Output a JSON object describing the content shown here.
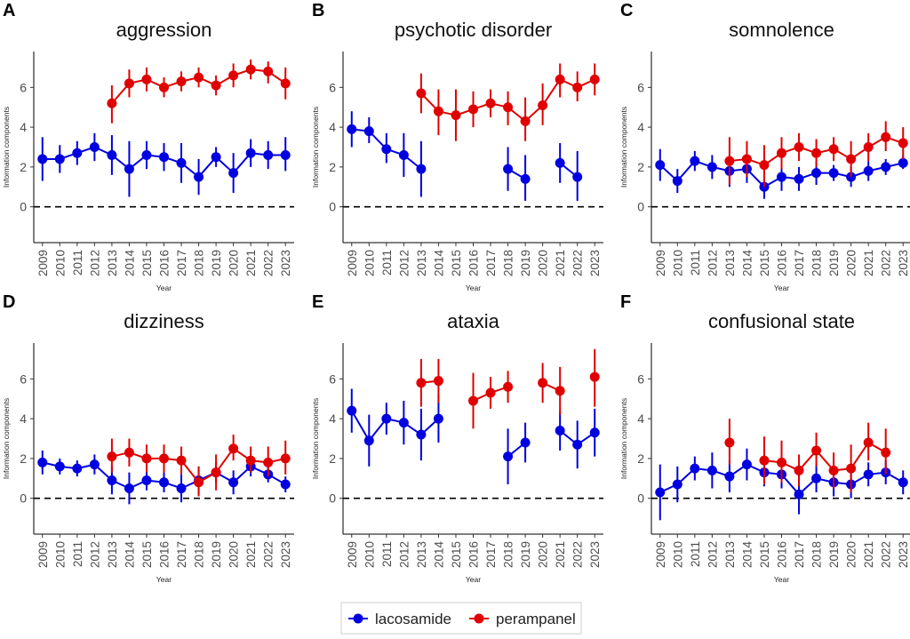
{
  "figure": {
    "legend": [
      {
        "label": "lacosamide",
        "color": "#0000E0"
      },
      {
        "label": "perampanel",
        "color": "#E00000"
      }
    ],
    "xlabel": "Year",
    "ylabel": "Information components",
    "yticks": [
      "0",
      "2",
      "4",
      "6"
    ],
    "years": [
      "2009",
      "2010",
      "2011",
      "2012",
      "2013",
      "2014",
      "2015",
      "2016",
      "2017",
      "2018",
      "2019",
      "2020",
      "2021",
      "2022",
      "2023"
    ]
  },
  "chart_data": [
    {
      "panel": "A",
      "title": "aggression",
      "type": "line",
      "ylim": [
        -1.8,
        7.8
      ],
      "series": [
        {
          "name": "lacosamide",
          "color": "#0000E0",
          "values": [
            2.4,
            2.4,
            2.7,
            3.0,
            2.6,
            1.9,
            2.6,
            2.5,
            2.2,
            1.5,
            2.5,
            1.7,
            2.7,
            2.6,
            2.6
          ],
          "lower": [
            1.3,
            1.7,
            2.1,
            2.3,
            1.6,
            0.5,
            1.9,
            1.8,
            1.2,
            0.6,
            2.0,
            0.7,
            2.0,
            1.9,
            1.8
          ],
          "upper": [
            3.5,
            3.1,
            3.3,
            3.7,
            3.6,
            3.3,
            3.3,
            3.2,
            3.2,
            2.4,
            3.0,
            2.7,
            3.4,
            3.3,
            3.5
          ]
        },
        {
          "name": "perampanel",
          "color": "#E00000",
          "values": [
            null,
            null,
            null,
            null,
            5.2,
            6.2,
            6.4,
            6.0,
            6.3,
            6.5,
            6.1,
            6.6,
            6.9,
            6.8,
            6.2
          ],
          "lower": [
            null,
            null,
            null,
            null,
            4.2,
            5.5,
            5.8,
            5.5,
            5.8,
            6.0,
            5.6,
            6.0,
            6.4,
            6.2,
            5.4
          ],
          "upper": [
            null,
            null,
            null,
            null,
            6.1,
            6.9,
            7.0,
            6.5,
            6.8,
            7.0,
            6.6,
            7.2,
            7.4,
            7.3,
            7.0
          ]
        }
      ]
    },
    {
      "panel": "B",
      "title": "psychotic disorder",
      "type": "line",
      "ylim": [
        -1.8,
        7.8
      ],
      "series": [
        {
          "name": "lacosamide",
          "color": "#0000E0",
          "values": [
            3.9,
            3.8,
            2.9,
            2.6,
            1.9,
            null,
            null,
            null,
            null,
            1.9,
            1.4,
            null,
            2.2,
            1.5,
            null
          ],
          "lower": [
            3.0,
            3.2,
            2.2,
            1.5,
            0.5,
            null,
            null,
            null,
            null,
            0.8,
            0.3,
            null,
            1.2,
            0.3,
            null
          ],
          "upper": [
            4.8,
            4.5,
            3.7,
            3.7,
            3.3,
            null,
            null,
            null,
            null,
            3.0,
            2.6,
            null,
            3.2,
            2.8,
            null
          ]
        },
        {
          "name": "perampanel",
          "color": "#E00000",
          "values": [
            null,
            null,
            null,
            null,
            5.7,
            4.8,
            4.6,
            4.9,
            5.2,
            5.0,
            4.3,
            5.1,
            6.4,
            6.0,
            6.4
          ],
          "lower": [
            null,
            null,
            null,
            null,
            4.7,
            3.6,
            3.3,
            4.0,
            4.5,
            4.1,
            3.3,
            4.1,
            5.5,
            5.3,
            5.6
          ],
          "upper": [
            null,
            null,
            null,
            null,
            6.7,
            5.9,
            5.9,
            5.8,
            5.9,
            5.8,
            5.5,
            6.2,
            7.2,
            6.8,
            7.2
          ]
        }
      ]
    },
    {
      "panel": "C",
      "title": "somnolence",
      "type": "line",
      "ylim": [
        -1.8,
        7.8
      ],
      "series": [
        {
          "name": "lacosamide",
          "color": "#0000E0",
          "values": [
            2.1,
            1.3,
            2.3,
            2.0,
            1.8,
            1.9,
            1.0,
            1.5,
            1.4,
            1.7,
            1.7,
            1.5,
            1.8,
            2.0,
            2.2
          ],
          "lower": [
            1.3,
            0.7,
            1.8,
            1.4,
            1.0,
            1.2,
            0.4,
            0.8,
            0.8,
            1.1,
            1.3,
            1.0,
            1.3,
            1.6,
            1.9
          ],
          "upper": [
            2.9,
            1.9,
            2.8,
            2.6,
            2.6,
            2.6,
            1.6,
            2.2,
            2.0,
            2.3,
            2.1,
            2.0,
            2.3,
            2.4,
            2.6
          ]
        },
        {
          "name": "perampanel",
          "color": "#E00000",
          "values": [
            null,
            null,
            null,
            null,
            2.3,
            2.4,
            2.1,
            2.7,
            3.0,
            2.7,
            2.9,
            2.4,
            3.0,
            3.5,
            3.2
          ],
          "lower": [
            null,
            null,
            null,
            null,
            1.1,
            1.5,
            1.0,
            1.9,
            2.3,
            2.0,
            2.3,
            1.5,
            2.3,
            2.8,
            2.4
          ],
          "upper": [
            null,
            null,
            null,
            null,
            3.5,
            3.3,
            3.1,
            3.5,
            3.7,
            3.4,
            3.5,
            3.3,
            3.7,
            4.3,
            4.0
          ]
        }
      ]
    },
    {
      "panel": "D",
      "title": "dizziness",
      "type": "line",
      "ylim": [
        -1.8,
        7.8
      ],
      "series": [
        {
          "name": "lacosamide",
          "color": "#0000E0",
          "values": [
            1.8,
            1.6,
            1.5,
            1.7,
            0.9,
            0.5,
            0.9,
            0.8,
            0.5,
            0.9,
            1.3,
            0.8,
            1.6,
            1.2,
            0.7
          ],
          "lower": [
            1.2,
            1.2,
            1.1,
            1.2,
            0.2,
            -0.3,
            0.4,
            0.3,
            -0.2,
            0.2,
            0.8,
            0.2,
            1.1,
            0.8,
            0.3
          ],
          "upper": [
            2.4,
            2.0,
            1.9,
            2.2,
            1.6,
            1.3,
            1.4,
            1.3,
            1.2,
            1.6,
            1.8,
            1.4,
            2.1,
            1.6,
            1.1
          ]
        },
        {
          "name": "perampanel",
          "color": "#E00000",
          "values": [
            null,
            null,
            null,
            null,
            2.1,
            2.3,
            2.0,
            2.0,
            1.9,
            0.8,
            1.3,
            2.5,
            1.9,
            1.8,
            2.0
          ],
          "lower": [
            null,
            null,
            null,
            null,
            1.3,
            1.6,
            1.3,
            1.3,
            1.2,
            0.1,
            0.4,
            1.9,
            1.3,
            1.1,
            1.2
          ],
          "upper": [
            null,
            null,
            null,
            null,
            3.0,
            3.0,
            2.7,
            2.7,
            2.6,
            1.6,
            2.2,
            3.2,
            2.6,
            2.6,
            2.9
          ]
        }
      ]
    },
    {
      "panel": "E",
      "title": "ataxia",
      "type": "line",
      "ylim": [
        -1.8,
        7.8
      ],
      "series": [
        {
          "name": "lacosamide",
          "color": "#0000E0",
          "values": [
            4.4,
            2.9,
            4.0,
            3.8,
            3.2,
            4.0,
            null,
            null,
            null,
            2.1,
            2.8,
            null,
            3.4,
            2.7,
            3.3
          ],
          "lower": [
            3.3,
            1.6,
            3.2,
            2.7,
            1.9,
            2.8,
            null,
            null,
            null,
            0.7,
            1.8,
            null,
            2.4,
            1.5,
            2.1
          ],
          "upper": [
            5.5,
            4.2,
            4.8,
            4.9,
            4.5,
            5.2,
            null,
            null,
            null,
            3.5,
            3.8,
            null,
            4.4,
            3.9,
            4.5
          ]
        },
        {
          "name": "perampanel",
          "color": "#E00000",
          "values": [
            null,
            null,
            null,
            null,
            5.8,
            5.9,
            null,
            4.9,
            5.3,
            5.6,
            null,
            5.8,
            5.4,
            null,
            6.1
          ],
          "lower": [
            null,
            null,
            null,
            null,
            4.6,
            4.8,
            null,
            3.5,
            4.5,
            4.8,
            null,
            4.8,
            4.2,
            null,
            4.6
          ],
          "upper": [
            null,
            null,
            null,
            null,
            7.0,
            7.0,
            null,
            6.3,
            6.1,
            6.4,
            null,
            6.8,
            6.6,
            null,
            7.5
          ]
        }
      ]
    },
    {
      "panel": "F",
      "title": "confusional state",
      "type": "line",
      "ylim": [
        -1.8,
        7.8
      ],
      "series": [
        {
          "name": "lacosamide",
          "color": "#0000E0",
          "values": [
            0.3,
            0.7,
            1.5,
            1.4,
            1.1,
            1.7,
            1.3,
            1.2,
            0.2,
            1.0,
            0.8,
            0.7,
            1.2,
            1.3,
            0.8
          ],
          "lower": [
            -1.1,
            -0.2,
            0.9,
            0.5,
            0.3,
            0.9,
            0.6,
            0.5,
            -0.8,
            0.3,
            0.1,
            0.0,
            0.6,
            0.7,
            0.2
          ],
          "upper": [
            1.7,
            1.6,
            2.1,
            2.3,
            1.9,
            2.5,
            2.0,
            1.9,
            1.2,
            1.7,
            1.5,
            1.4,
            1.8,
            1.9,
            1.4
          ]
        },
        {
          "name": "perampanel",
          "color": "#E00000",
          "values": [
            null,
            null,
            null,
            null,
            2.8,
            null,
            1.9,
            1.8,
            1.4,
            2.4,
            1.4,
            1.5,
            2.8,
            2.3,
            null
          ],
          "lower": [
            null,
            null,
            null,
            null,
            1.7,
            null,
            0.7,
            0.8,
            0.6,
            1.6,
            0.5,
            0.3,
            1.9,
            1.2,
            null
          ],
          "upper": [
            null,
            null,
            null,
            null,
            4.0,
            null,
            3.1,
            2.9,
            2.2,
            3.3,
            2.3,
            2.7,
            3.8,
            3.5,
            null
          ]
        }
      ]
    }
  ]
}
